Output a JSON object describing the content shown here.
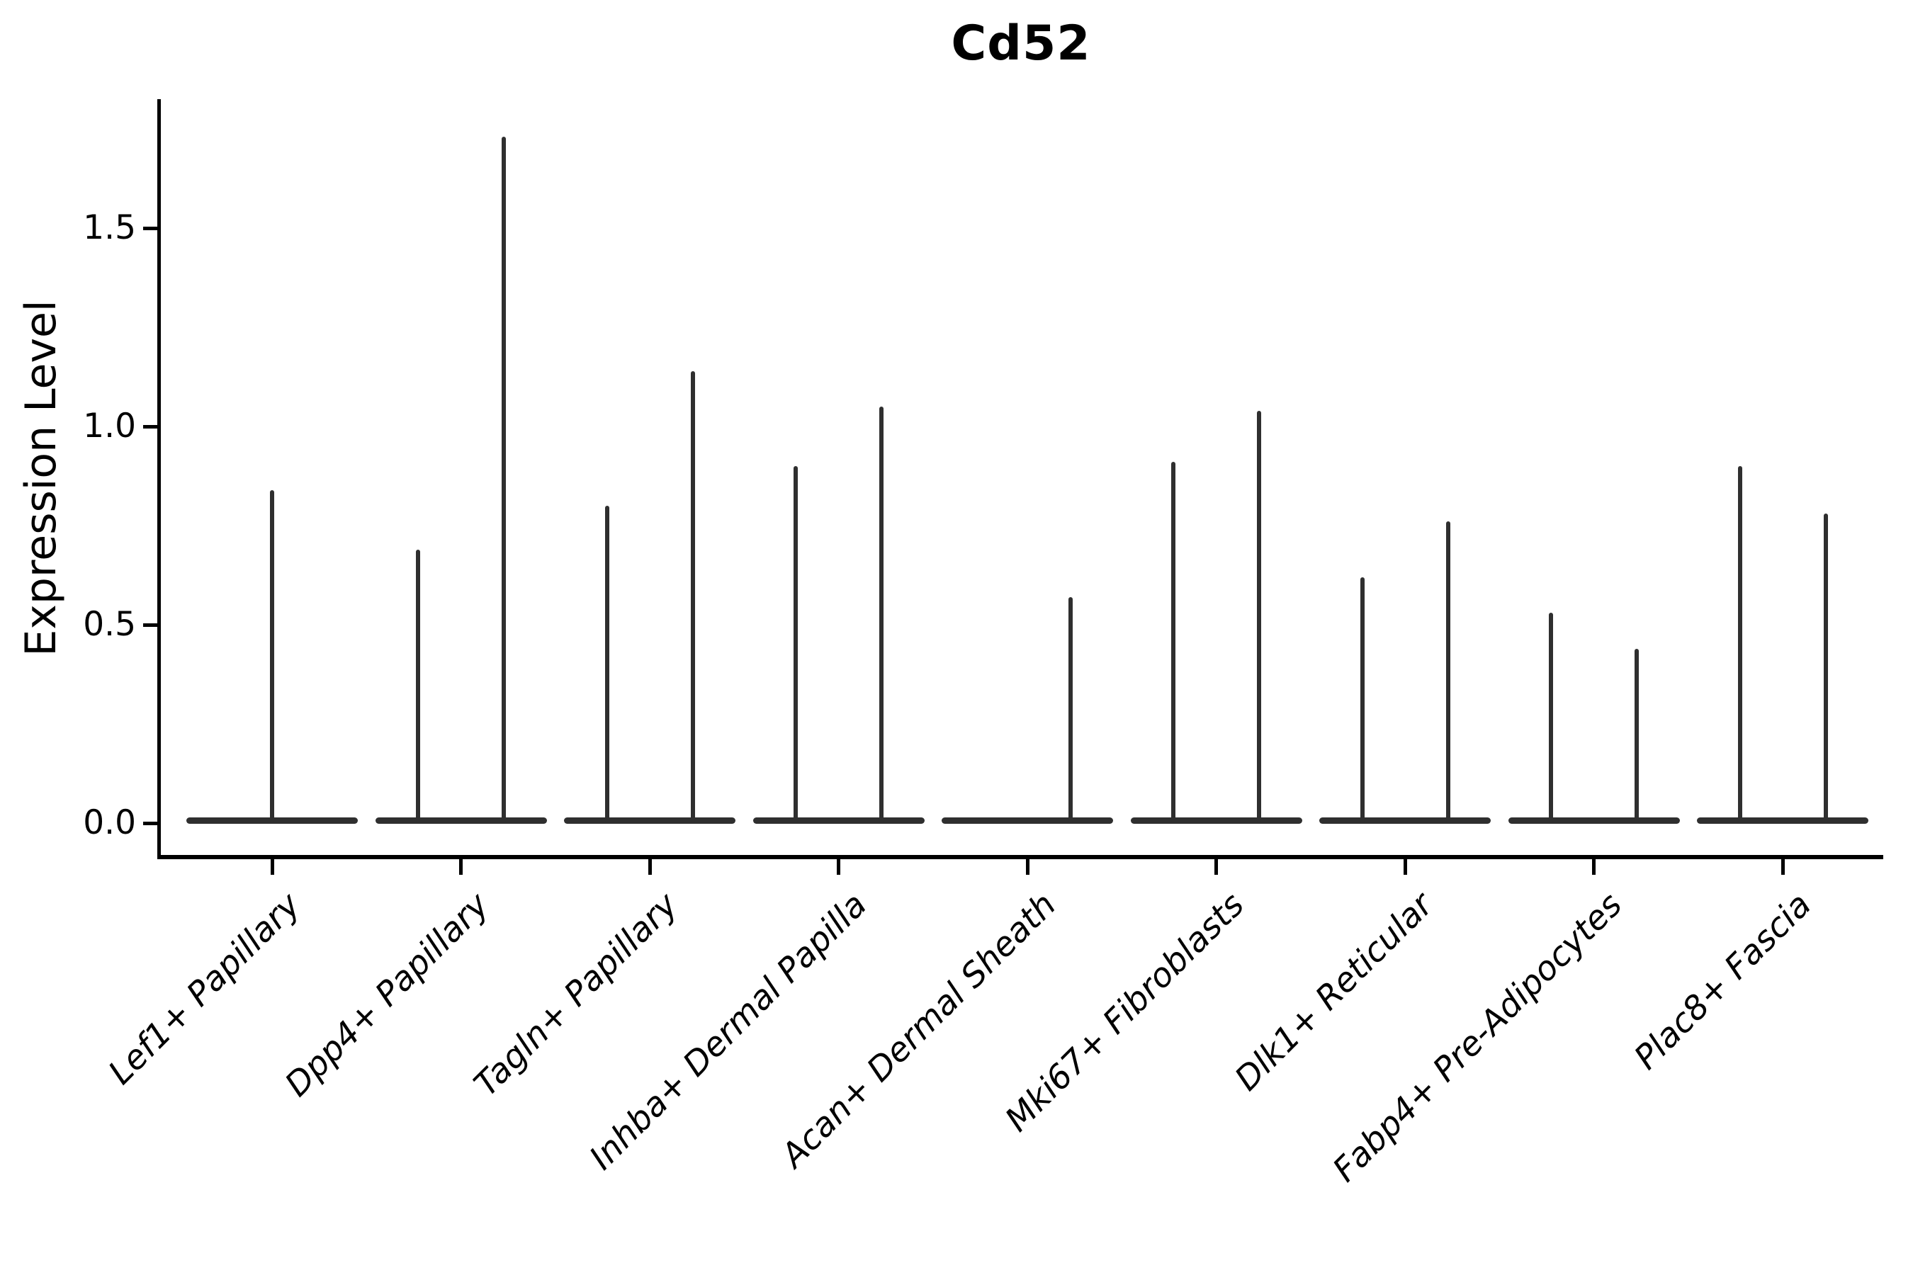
{
  "title": "Cd52",
  "y_axis": {
    "label": "Expression Level",
    "tick_labels": [
      "0.0",
      "0.5",
      "1.0",
      "1.5"
    ]
  },
  "x_axis": {
    "tick_labels": [
      "Lef1+ Papillary",
      "Dpp4+ Papillary",
      "Tagln+ Papillary",
      "Inhba+ Dermal Papilla",
      "Acan+ Dermal Sheath",
      "Mki67+ Fibroblasts",
      "Dlk1+ Reticular",
      "Fabp4+ Pre-Adipocytes",
      "Plac8+ Fascia"
    ]
  },
  "colors": {
    "violin": "#2f2f2f",
    "axis": "#000000",
    "text": "#000000",
    "background": "#ffffff"
  },
  "chart_data": {
    "type": "violin",
    "title": "Cd52",
    "xlabel": "",
    "ylabel": "Expression Level",
    "ylim": [
      -0.09,
      1.83
    ],
    "yticks": [
      0.0,
      0.5,
      1.0,
      1.5
    ],
    "grid": false,
    "legend": false,
    "categories": [
      "Lef1+ Papillary",
      "Dpp4+ Papillary",
      "Tagln+ Papillary",
      "Inhba+ Dermal Papilla",
      "Acan+ Dermal Sheath",
      "Mki67+ Fibroblasts",
      "Dlk1+ Reticular",
      "Fabp4+ Pre-Adipocytes",
      "Plac8+ Fascia"
    ],
    "violins": [
      {
        "category": "Lef1+ Papillary",
        "spike_maxima": [
          0.84
        ]
      },
      {
        "category": "Dpp4+ Papillary",
        "spike_maxima": [
          0.69,
          1.73
        ]
      },
      {
        "category": "Tagln+ Papillary",
        "spike_maxima": [
          0.8,
          1.14
        ]
      },
      {
        "category": "Inhba+ Dermal Papilla",
        "spike_maxima": [
          0.9,
          1.05
        ]
      },
      {
        "category": "Acan+ Dermal Sheath",
        "spike_maxima": [
          0.0,
          0.57
        ]
      },
      {
        "category": "Mki67+ Fibroblasts",
        "spike_maxima": [
          0.91,
          1.04
        ]
      },
      {
        "category": "Dlk1+ Reticular",
        "spike_maxima": [
          0.62,
          0.76
        ]
      },
      {
        "category": "Fabp4+ Pre-Adipocytes",
        "spike_maxima": [
          0.53,
          0.44
        ]
      },
      {
        "category": "Plac8+ Fascia",
        "spike_maxima": [
          0.9,
          0.78
        ]
      }
    ],
    "shape_note": "Each violin is almost entirely massed at expression 0 (flat wide base) with a single thin density spike rising to its maximum; categories with two violins are sample pairs dodged side by side; Lef1+ Papillary has one full-width violin; Acan+ Dermal Sheath left violin is all zeros (flat)."
  }
}
